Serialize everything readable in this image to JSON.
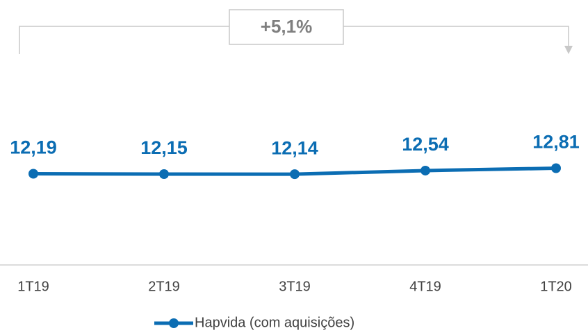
{
  "chart_data": {
    "type": "line",
    "categories": [
      "1T19",
      "2T19",
      "3T19",
      "4T19",
      "1T20"
    ],
    "series": [
      {
        "name": "Hapvida (com aquisições)",
        "color": "#0b6db3",
        "values": [
          12.19,
          12.15,
          12.14,
          12.54,
          12.81
        ],
        "value_labels": [
          "12,19",
          "12,15",
          "12,14",
          "12,54",
          "12,81"
        ]
      }
    ],
    "ylim": [
      2,
      28.5
    ],
    "annotation": "+5,1%",
    "legend": "bottom"
  }
}
